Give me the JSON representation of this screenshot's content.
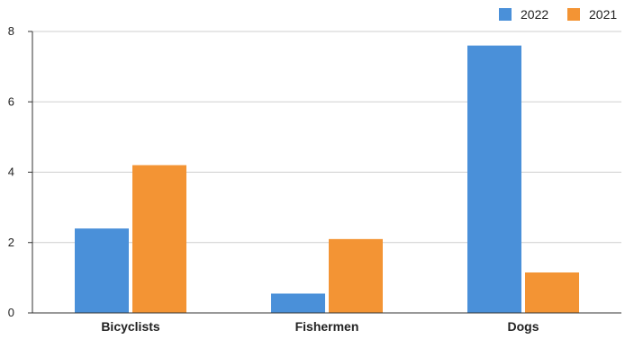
{
  "chart_data": {
    "type": "bar",
    "categories": [
      "Bicyclists",
      "Fishermen",
      "Dogs"
    ],
    "series": [
      {
        "name": "2022",
        "values": [
          2.4,
          0.55,
          7.6
        ],
        "color": "#4a90d9"
      },
      {
        "name": "2021",
        "values": [
          4.2,
          2.1,
          1.15
        ],
        "color": "#f39434"
      }
    ],
    "title": "",
    "xlabel": "",
    "ylabel": "",
    "ylim": [
      0,
      8
    ],
    "yticks": [
      0,
      2,
      4,
      6,
      8
    ],
    "grid": true,
    "legend": "top-right"
  }
}
